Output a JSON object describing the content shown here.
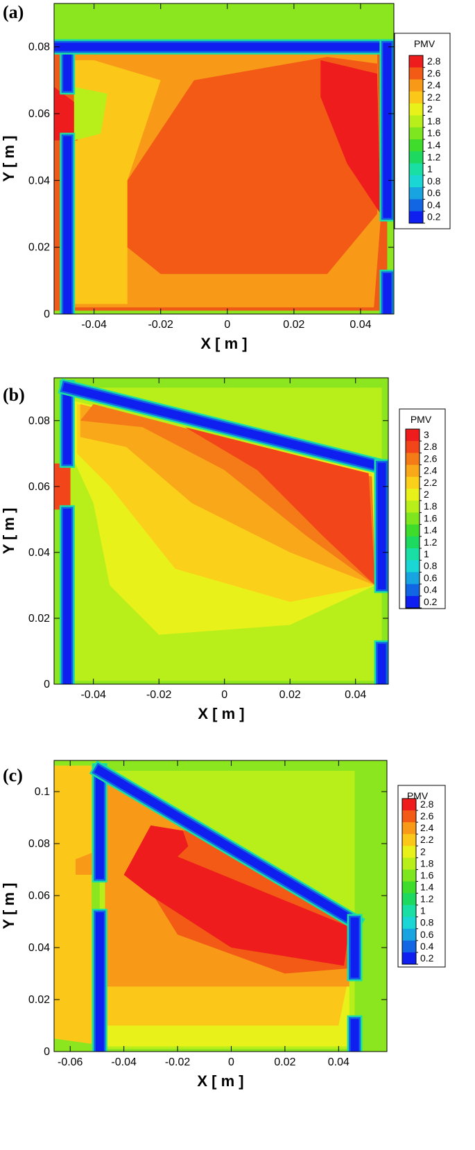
{
  "figure": {
    "panels": [
      "(a)",
      "(b)",
      "(c)"
    ]
  },
  "chart_data": [
    {
      "type": "heatmap",
      "panel_label": "(a)",
      "xlabel": "X [ m ]",
      "ylabel": "Y [ m ]",
      "xlim": [
        -0.052,
        0.05
      ],
      "ylim": [
        0,
        0.093
      ],
      "x_ticks": [
        -0.04,
        -0.02,
        0,
        0.02,
        0.04
      ],
      "x_tick_labels": [
        "-0.04",
        "-0.02",
        "0",
        "0.02",
        "0.04"
      ],
      "y_ticks": [
        0,
        0.02,
        0.04,
        0.06,
        0.08
      ],
      "y_tick_labels": [
        "0",
        "0.02",
        "0.04",
        "0.06",
        "0.08"
      ],
      "legend_title": "PMV",
      "legend_values": [
        "2.8",
        "2.6",
        "2.4",
        "2.2",
        "2",
        "1.8",
        "1.6",
        "1.4",
        "1.2",
        "1",
        "0.8",
        "0.6",
        "0.4",
        "0.2"
      ],
      "legend_colors": [
        "#ee1c1c",
        "#f25a16",
        "#f89a18",
        "#fbc81a",
        "#e8f21a",
        "#b8ee1a",
        "#7ee61e",
        "#3fdc2c",
        "#1ed95f",
        "#1adfa4",
        "#1ad6d4",
        "#17a4e0",
        "#1266e4",
        "#0e1ff0"
      ],
      "legend_placement": "right",
      "background": "#ef5a16",
      "outer_color": "#8ce61f",
      "wall_color": "#0e1ff0",
      "walls": [
        [
          [
            -0.048,
            0.001
          ],
          [
            -0.048,
            0.052
          ]
        ],
        [
          [
            -0.048,
            0.068
          ],
          [
            -0.048,
            0.08
          ]
        ],
        [
          [
            -0.052,
            0.08
          ],
          [
            0.048,
            0.08
          ]
        ],
        [
          [
            0.048,
            0.08
          ],
          [
            0.048,
            0.03
          ]
        ],
        [
          [
            0.048,
            0.011
          ],
          [
            0.048,
            0.001
          ]
        ]
      ],
      "regions": [
        {
          "color": "#f89a18",
          "points": [
            [
              -0.046,
              0.002
            ],
            [
              0.044,
              0.002
            ],
            [
              0.046,
              0.028
            ],
            [
              0.045,
              0.078
            ],
            [
              -0.046,
              0.078
            ]
          ]
        },
        {
          "color": "#fbc81a",
          "points": [
            [
              -0.046,
              0.003
            ],
            [
              -0.03,
              0.003
            ],
            [
              -0.03,
              0.04
            ],
            [
              -0.02,
              0.07
            ],
            [
              -0.04,
              0.076
            ],
            [
              -0.046,
              0.076
            ]
          ]
        },
        {
          "color": "#f25a16",
          "points": [
            [
              -0.03,
              0.04
            ],
            [
              -0.01,
              0.07
            ],
            [
              0.03,
              0.077
            ],
            [
              0.045,
              0.075
            ],
            [
              0.045,
              0.03
            ],
            [
              0.03,
              0.012
            ],
            [
              -0.02,
              0.012
            ],
            [
              -0.03,
              0.02
            ]
          ]
        },
        {
          "color": "#ee1c1c",
          "points": [
            [
              0.028,
              0.076
            ],
            [
              0.045,
              0.072
            ],
            [
              0.046,
              0.03
            ],
            [
              0.036,
              0.045
            ],
            [
              0.028,
              0.065
            ]
          ]
        },
        {
          "color": "#ee1c1c",
          "points": [
            [
              -0.052,
              0.052
            ],
            [
              -0.045,
              0.052
            ],
            [
              -0.044,
              0.062
            ],
            [
              -0.052,
              0.068
            ]
          ]
        },
        {
          "color": "#b8ee1a",
          "points": [
            [
              -0.046,
              0.052
            ],
            [
              -0.038,
              0.054
            ],
            [
              -0.036,
              0.066
            ],
            [
              -0.046,
              0.068
            ]
          ]
        }
      ]
    },
    {
      "type": "heatmap",
      "panel_label": "(b)",
      "xlabel": "X [ m ]",
      "ylabel": "Y [ m ]",
      "xlim": [
        -0.052,
        0.05
      ],
      "ylim": [
        0,
        0.093
      ],
      "x_ticks": [
        -0.04,
        -0.02,
        0,
        0.02,
        0.04
      ],
      "x_tick_labels": [
        "-0.04",
        "-0.02",
        "0",
        "0.02",
        "0.04"
      ],
      "y_ticks": [
        0,
        0.02,
        0.04,
        0.06,
        0.08
      ],
      "y_tick_labels": [
        "0",
        "0.02",
        "0.04",
        "0.06",
        "0.08"
      ],
      "legend_title": "PMV",
      "legend_values": [
        "3",
        "2.8",
        "2.6",
        "2.4",
        "2.2",
        "2",
        "1.8",
        "1.6",
        "1.4",
        "1.2",
        "1",
        "0.8",
        "0.6",
        "0.4",
        "0.2"
      ],
      "legend_colors": [
        "#ee1c1c",
        "#f2461a",
        "#f57a18",
        "#f8a818",
        "#fbd01a",
        "#e8f21a",
        "#b8ee1a",
        "#7ee61e",
        "#3fdc2c",
        "#1ed95f",
        "#1adfa4",
        "#1ad6d4",
        "#17a4e0",
        "#1266e4",
        "#0e1ff0"
      ],
      "legend_placement": "right",
      "background": "#b8ee1a",
      "outer_color": "#8ce61f",
      "wall_color": "#0e1ff0",
      "walls": [
        [
          [
            -0.048,
            0.001
          ],
          [
            -0.048,
            0.052
          ]
        ],
        [
          [
            -0.048,
            0.068
          ],
          [
            -0.048,
            0.09
          ]
        ],
        [
          [
            -0.048,
            0.09
          ],
          [
            0.048,
            0.066
          ]
        ],
        [
          [
            0.048,
            0.066
          ],
          [
            0.048,
            0.03
          ]
        ],
        [
          [
            0.048,
            0.011
          ],
          [
            0.048,
            0.001
          ]
        ]
      ],
      "regions": [
        {
          "color": "#e8f21a",
          "points": [
            [
              -0.046,
              0.068
            ],
            [
              -0.046,
              0.086
            ],
            [
              0.046,
              0.064
            ],
            [
              0.046,
              0.03
            ],
            [
              0.02,
              0.018
            ],
            [
              -0.02,
              0.015
            ],
            [
              -0.035,
              0.03
            ],
            [
              -0.04,
              0.055
            ]
          ]
        },
        {
          "color": "#fbd01a",
          "points": [
            [
              -0.045,
              0.07
            ],
            [
              -0.045,
              0.085
            ],
            [
              0.045,
              0.064
            ],
            [
              0.046,
              0.03
            ],
            [
              0.02,
              0.025
            ],
            [
              -0.015,
              0.035
            ],
            [
              -0.035,
              0.06
            ]
          ]
        },
        {
          "color": "#f8a818",
          "points": [
            [
              -0.044,
              0.075
            ],
            [
              -0.044,
              0.085
            ],
            [
              0.045,
              0.063
            ],
            [
              0.046,
              0.03
            ],
            [
              0.02,
              0.04
            ],
            [
              -0.01,
              0.055
            ],
            [
              -0.03,
              0.072
            ]
          ]
        },
        {
          "color": "#f57a18",
          "points": [
            [
              -0.044,
              0.08
            ],
            [
              -0.04,
              0.085
            ],
            [
              0.045,
              0.063
            ],
            [
              0.046,
              0.03
            ],
            [
              0.025,
              0.045
            ],
            [
              0.0,
              0.065
            ],
            [
              -0.025,
              0.078
            ]
          ]
        },
        {
          "color": "#f2461a",
          "points": [
            [
              -0.012,
              0.078
            ],
            [
              0.044,
              0.064
            ],
            [
              0.046,
              0.03
            ],
            [
              0.03,
              0.045
            ],
            [
              0.01,
              0.065
            ]
          ]
        },
        {
          "color": "#f2461a",
          "points": [
            [
              -0.052,
              0.053
            ],
            [
              -0.047,
              0.053
            ],
            [
              -0.047,
              0.067
            ],
            [
              -0.052,
              0.067
            ]
          ]
        }
      ]
    },
    {
      "type": "heatmap",
      "panel_label": "(c)",
      "xlabel": "X [ m ]",
      "ylabel": "Y [ m ]",
      "xlim": [
        -0.066,
        0.058
      ],
      "ylim": [
        0,
        0.112
      ],
      "x_ticks": [
        -0.06,
        -0.04,
        -0.02,
        0,
        0.02,
        0.04
      ],
      "x_tick_labels": [
        "-0.06",
        "-0.04",
        "-0.02",
        "0",
        "0.02",
        "0.04"
      ],
      "y_ticks": [
        0,
        0.02,
        0.04,
        0.06,
        0.08,
        0.1
      ],
      "y_tick_labels": [
        "0",
        "0.02",
        "0.04",
        "0.06",
        "0.08",
        "0.1"
      ],
      "legend_title": "PMV",
      "legend_values": [
        "2.8",
        "2.6",
        "2.4",
        "2.2",
        "2",
        "1.8",
        "1.6",
        "1.4",
        "1.2",
        "1",
        "0.8",
        "0.6",
        "0.4",
        "0.2"
      ],
      "legend_colors": [
        "#ee1c1c",
        "#f25a16",
        "#f89a18",
        "#fbc81a",
        "#e8f21a",
        "#b8ee1a",
        "#7ee61e",
        "#3fdc2c",
        "#1ed95f",
        "#1adfa4",
        "#1ad6d4",
        "#17a4e0",
        "#1266e4",
        "#0e1ff0"
      ],
      "legend_placement": "right",
      "background": "#b8ee1a",
      "outer_color": "#8ce61f",
      "wall_color": "#0e1ff0",
      "walls": [
        [
          [
            -0.049,
            0.001
          ],
          [
            -0.049,
            0.052
          ]
        ],
        [
          [
            -0.049,
            0.068
          ],
          [
            -0.049,
            0.108
          ]
        ],
        [
          [
            -0.049,
            0.108
          ],
          [
            0.046,
            0.05
          ]
        ],
        [
          [
            0.046,
            0.05
          ],
          [
            0.046,
            0.03
          ]
        ],
        [
          [
            0.046,
            0.011
          ],
          [
            0.046,
            0.001
          ]
        ]
      ],
      "regions": [
        {
          "color": "#fbc81a",
          "points": [
            [
              -0.066,
              0.005
            ],
            [
              -0.052,
              0.003
            ],
            [
              -0.052,
              0.11
            ],
            [
              -0.066,
              0.11
            ]
          ]
        },
        {
          "color": "#e8f21a",
          "points": [
            [
              -0.047,
              0.002
            ],
            [
              0.044,
              0.002
            ],
            [
              0.044,
              0.03
            ],
            [
              0.02,
              0.03
            ],
            [
              -0.02,
              0.035
            ],
            [
              -0.047,
              0.06
            ]
          ]
        },
        {
          "color": "#fbc81a",
          "points": [
            [
              -0.047,
              0.01
            ],
            [
              0.04,
              0.01
            ],
            [
              0.044,
              0.03
            ],
            [
              0.0,
              0.04
            ],
            [
              -0.047,
              0.063
            ]
          ]
        },
        {
          "color": "#f89a18",
          "points": [
            [
              -0.047,
              0.025
            ],
            [
              0.044,
              0.025
            ],
            [
              0.044,
              0.048
            ],
            [
              -0.047,
              0.104
            ]
          ]
        },
        {
          "color": "#f25a16",
          "points": [
            [
              -0.035,
              0.07
            ],
            [
              -0.025,
              0.085
            ],
            [
              -0.015,
              0.085
            ],
            [
              0.044,
              0.05
            ],
            [
              0.044,
              0.032
            ],
            [
              0.02,
              0.03
            ],
            [
              -0.02,
              0.045
            ]
          ]
        },
        {
          "color": "#ee1c1c",
          "points": [
            [
              -0.04,
              0.068
            ],
            [
              -0.03,
              0.087
            ],
            [
              -0.018,
              0.085
            ],
            [
              -0.016,
              0.079
            ],
            [
              -0.02,
              0.075
            ],
            [
              0.044,
              0.048
            ],
            [
              0.042,
              0.033
            ],
            [
              0.0,
              0.04
            ],
            [
              -0.03,
              0.06
            ]
          ]
        },
        {
          "color": "#f89a18",
          "points": [
            [
              -0.058,
              0.068
            ],
            [
              -0.05,
              0.068
            ],
            [
              -0.048,
              0.078
            ],
            [
              -0.058,
              0.074
            ]
          ]
        }
      ]
    }
  ]
}
